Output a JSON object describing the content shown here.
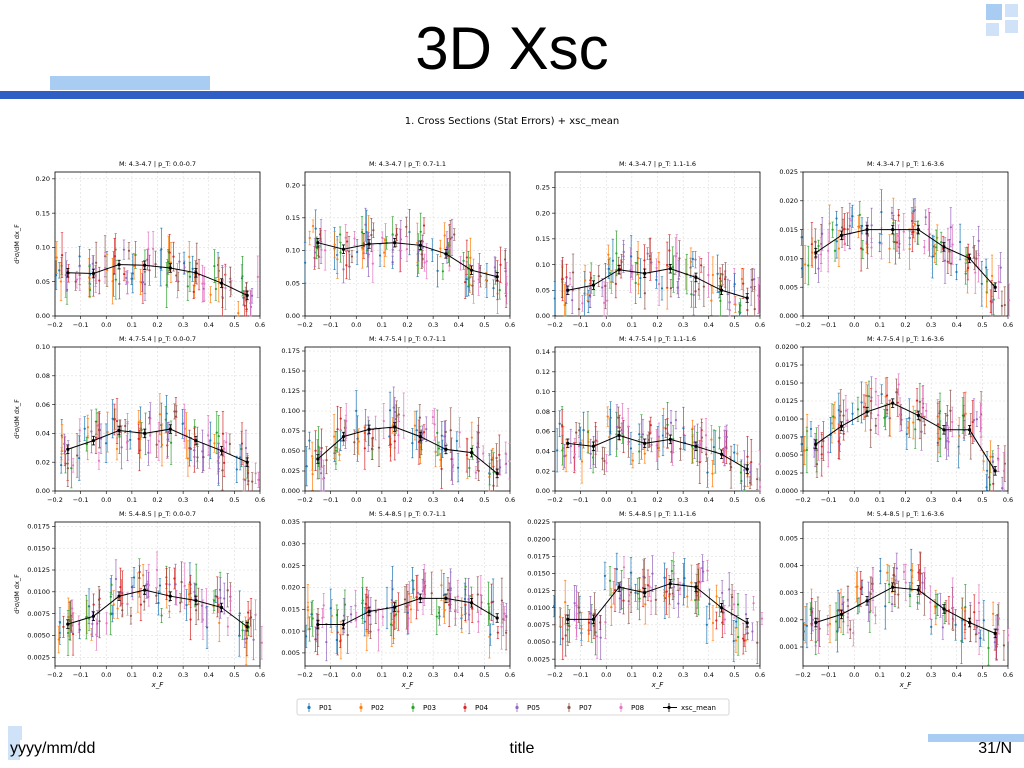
{
  "slide": {
    "title": "3D Xsc",
    "footer_date": "yyyy/mm/dd",
    "footer_title": "title",
    "footer_page": "31/N",
    "accent_color": "#2f5fc4",
    "light_accent": "#a9cdf2"
  },
  "figure": {
    "title": "1. Cross Sections (Stat Errors) + xsc_mean"
  },
  "chart_data": {
    "type": "scatter",
    "x_ticks": [
      -0.2,
      -0.1,
      0.0,
      0.1,
      0.2,
      0.3,
      0.4,
      0.5,
      0.6
    ],
    "xlim": [
      -0.2,
      0.6
    ],
    "xlabel": "x_F",
    "ylabel": "d²σ/dM dx_F",
    "legend": {
      "placement": "bottom-center",
      "entries": [
        {
          "name": "P01",
          "color": "#1f77b4"
        },
        {
          "name": "P02",
          "color": "#ff7f0e"
        },
        {
          "name": "P03",
          "color": "#2ca02c"
        },
        {
          "name": "P04",
          "color": "#d62728"
        },
        {
          "name": "P05",
          "color": "#9467bd"
        },
        {
          "name": "P07",
          "color": "#8c564b"
        },
        {
          "name": "P08",
          "color": "#e377c2"
        },
        {
          "name": "xsc_mean",
          "color": "#000000"
        }
      ]
    },
    "mean_x": [
      -0.15,
      -0.05,
      0.05,
      0.15,
      0.25,
      0.35,
      0.45,
      0.55
    ],
    "panels": [
      {
        "title": "M: 4.3-4.7 | p_T: 0.0-0.7",
        "ylim": [
          0,
          0.21
        ],
        "yticks": [
          "0.00",
          "0.05",
          "0.10",
          "0.15",
          "0.20"
        ],
        "ytick_values": [
          0,
          0.05,
          0.1,
          0.15,
          0.2
        ],
        "mean_y": [
          0.063,
          0.062,
          0.075,
          0.074,
          0.07,
          0.063,
          0.048,
          0.03
        ]
      },
      {
        "title": "M: 4.3-4.7 | p_T: 0.7-1.1",
        "ylim": [
          0,
          0.22
        ],
        "yticks": [
          "0.00",
          "0.05",
          "0.10",
          "0.15",
          "0.20"
        ],
        "ytick_values": [
          0,
          0.05,
          0.1,
          0.15,
          0.2
        ],
        "mean_y": [
          0.112,
          0.102,
          0.11,
          0.112,
          0.108,
          0.095,
          0.07,
          0.06
        ]
      },
      {
        "title": "M: 4.3-4.7 | p_T: 1.1-1.6",
        "ylim": [
          0,
          0.28
        ],
        "yticks": [
          "0.00",
          "0.05",
          "0.10",
          "0.15",
          "0.20",
          "0.25"
        ],
        "ytick_values": [
          0,
          0.05,
          0.1,
          0.15,
          0.2,
          0.25
        ],
        "mean_y": [
          0.05,
          0.06,
          0.09,
          0.083,
          0.092,
          0.075,
          0.05,
          0.035
        ]
      },
      {
        "title": "M: 4.3-4.7 | p_T: 1.6-3.6",
        "ylim": [
          0,
          0.025
        ],
        "yticks": [
          "0.000",
          "0.005",
          "0.010",
          "0.015",
          "0.020",
          "0.025"
        ],
        "ytick_values": [
          0,
          0.005,
          0.01,
          0.015,
          0.02,
          0.025
        ],
        "mean_y": [
          0.011,
          0.014,
          0.015,
          0.015,
          0.015,
          0.012,
          0.01,
          0.005
        ]
      },
      {
        "title": "M: 4.7-5.4 | p_T: 0.0-0.7",
        "ylim": [
          0,
          0.1
        ],
        "yticks": [
          "0.00",
          "0.02",
          "0.04",
          "0.06",
          "0.08",
          "0.10"
        ],
        "ytick_values": [
          0,
          0.02,
          0.04,
          0.06,
          0.08,
          0.1
        ],
        "mean_y": [
          0.029,
          0.035,
          0.042,
          0.04,
          0.043,
          0.035,
          0.028,
          0.02
        ]
      },
      {
        "title": "M: 4.7-5.4 | p_T: 0.7-1.1",
        "ylim": [
          0,
          0.18
        ],
        "yticks": [
          "0.000",
          "0.025",
          "0.050",
          "0.075",
          "0.100",
          "0.125",
          "0.150",
          "0.175"
        ],
        "ytick_values": [
          0,
          0.025,
          0.05,
          0.075,
          0.1,
          0.125,
          0.15,
          0.175
        ],
        "mean_y": [
          0.04,
          0.068,
          0.077,
          0.08,
          0.068,
          0.052,
          0.048,
          0.022
        ]
      },
      {
        "title": "M: 4.7-5.4 | p_T: 1.1-1.6",
        "ylim": [
          0,
          0.145
        ],
        "yticks": [
          "0.00",
          "0.02",
          "0.04",
          "0.06",
          "0.08",
          "0.10",
          "0.12",
          "0.14"
        ],
        "ytick_values": [
          0,
          0.02,
          0.04,
          0.06,
          0.08,
          0.1,
          0.12,
          0.14
        ],
        "mean_y": [
          0.048,
          0.045,
          0.056,
          0.048,
          0.052,
          0.045,
          0.037,
          0.022
        ]
      },
      {
        "title": "M: 4.7-5.4 | p_T: 1.6-3.6",
        "ylim": [
          0,
          0.02
        ],
        "yticks": [
          "0.0000",
          "0.0025",
          "0.0050",
          "0.0075",
          "0.0100",
          "0.0125",
          "0.0150",
          "0.0175",
          "0.0200"
        ],
        "ytick_values": [
          0,
          0.0025,
          0.005,
          0.0075,
          0.01,
          0.0125,
          0.015,
          0.0175,
          0.02
        ],
        "mean_y": [
          0.0065,
          0.009,
          0.011,
          0.0122,
          0.0105,
          0.0085,
          0.0085,
          0.0028
        ]
      },
      {
        "title": "M: 5.4-8.5 | p_T: 0.0-0.7",
        "ylim": [
          0.0015,
          0.018
        ],
        "yticks": [
          "0.0025",
          "0.0050",
          "0.0075",
          "0.0100",
          "0.0125",
          "0.0150",
          "0.0175"
        ],
        "ytick_values": [
          0.0025,
          0.005,
          0.0075,
          0.01,
          0.0125,
          0.015,
          0.0175
        ],
        "mean_y": [
          0.0063,
          0.0072,
          0.0095,
          0.0102,
          0.0095,
          0.009,
          0.0082,
          0.006
        ]
      },
      {
        "title": "M: 5.4-8.5 | p_T: 0.7-1.1",
        "ylim": [
          0.002,
          0.035
        ],
        "yticks": [
          "0.005",
          "0.010",
          "0.015",
          "0.020",
          "0.025",
          "0.030",
          "0.035"
        ],
        "ytick_values": [
          0.005,
          0.01,
          0.015,
          0.02,
          0.025,
          0.03,
          0.035
        ],
        "mean_y": [
          0.0115,
          0.0115,
          0.0145,
          0.0155,
          0.0175,
          0.0175,
          0.0165,
          0.013
        ]
      },
      {
        "title": "M: 5.4-8.5 | p_T: 1.1-1.6",
        "ylim": [
          0.0015,
          0.0225
        ],
        "yticks": [
          "0.0025",
          "0.0050",
          "0.0075",
          "0.0100",
          "0.0125",
          "0.0150",
          "0.0175",
          "0.0200",
          "0.0225"
        ],
        "ytick_values": [
          0.0025,
          0.005,
          0.0075,
          0.01,
          0.0125,
          0.015,
          0.0175,
          0.02,
          0.0225
        ],
        "mean_y": [
          0.0083,
          0.0083,
          0.013,
          0.0122,
          0.0135,
          0.013,
          0.01,
          0.0078
        ]
      },
      {
        "title": "M: 5.4-8.5 | p_T: 1.6-3.6",
        "ylim": [
          0.0003,
          0.0056
        ],
        "yticks": [
          "0.001",
          "0.002",
          "0.003",
          "0.004",
          "0.005"
        ],
        "ytick_values": [
          0.001,
          0.002,
          0.003,
          0.004,
          0.005
        ],
        "mean_y": [
          0.0019,
          0.0022,
          0.0027,
          0.0032,
          0.0031,
          0.0024,
          0.0019,
          0.0015
        ]
      }
    ]
  }
}
